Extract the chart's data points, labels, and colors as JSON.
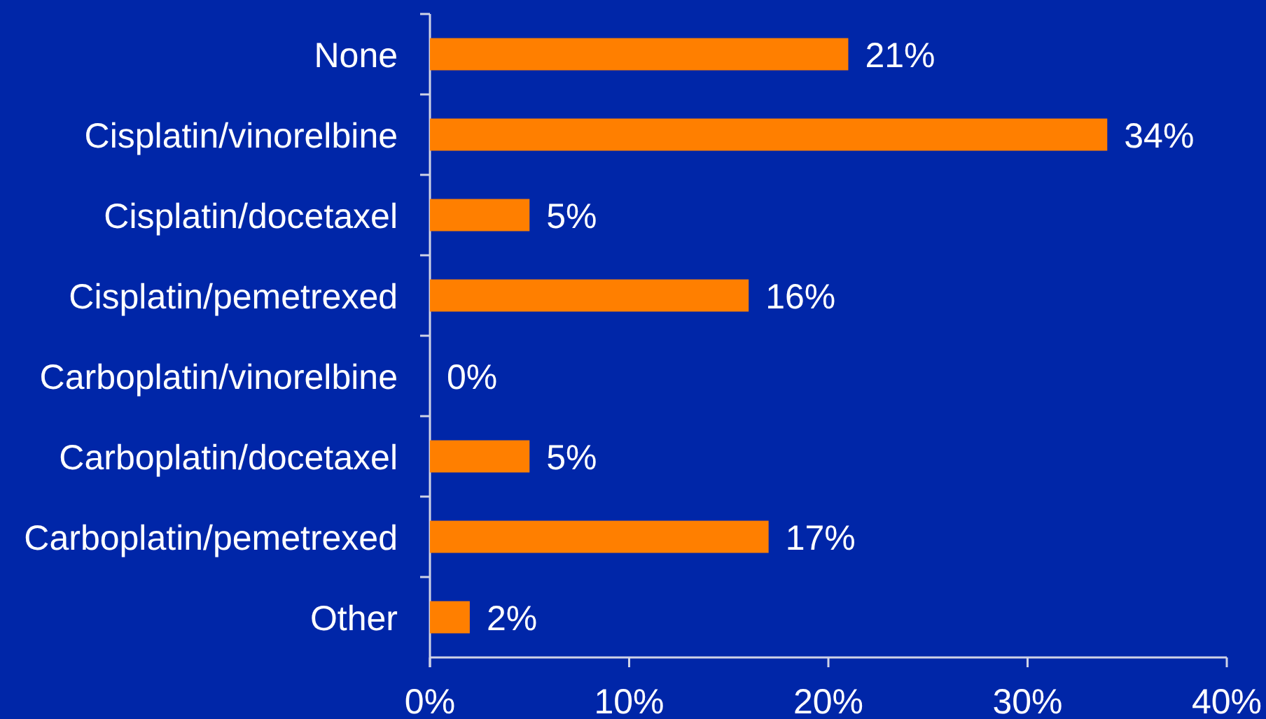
{
  "chart_data": {
    "type": "bar",
    "orientation": "horizontal",
    "categories": [
      "None",
      "Cisplatin/vinorelbine",
      "Cisplatin/docetaxel",
      "Cisplatin/pemetrexed",
      "Carboplatin/vinorelbine",
      "Carboplatin/docetaxel",
      "Carboplatin/pemetrexed",
      "Other"
    ],
    "values": [
      21,
      34,
      5,
      16,
      0,
      5,
      17,
      2
    ],
    "color": "#ff7f00",
    "value_labels": [
      "21%",
      "34%",
      "5%",
      "16%",
      "0%",
      "5%",
      "17%",
      "2%"
    ],
    "xlim": [
      0,
      40
    ],
    "xticks": [
      {
        "value": 0,
        "label": "0%"
      },
      {
        "value": 10,
        "label": "10%"
      },
      {
        "value": 20,
        "label": "20%"
      },
      {
        "value": 30,
        "label": "30%"
      },
      {
        "value": 40,
        "label": "40%"
      }
    ]
  }
}
